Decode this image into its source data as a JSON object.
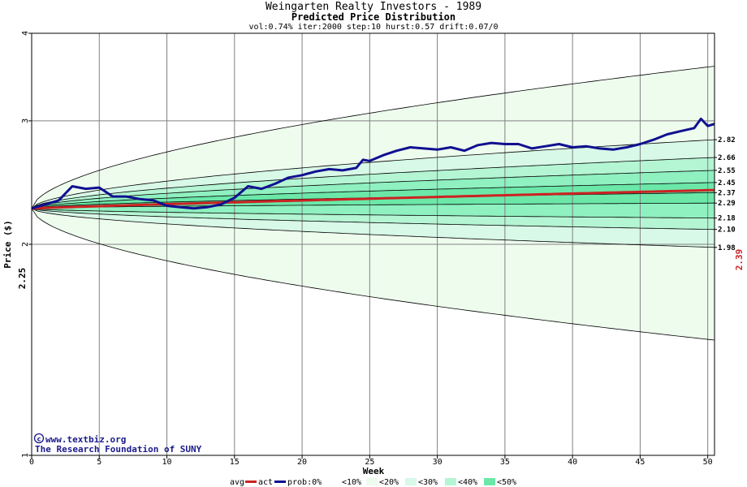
{
  "chart_data": {
    "type": "area",
    "title": "Weingarten Realty Investors - 1989",
    "subtitle": "Predicted Price Distribution",
    "params": "vol:0.74% iter:2000 step:10 hurst:0.57 drift:0.07/0",
    "xlabel": "Week",
    "ylabel": "Price ($)",
    "xlim": [
      0,
      50.5
    ],
    "ylim": [
      1,
      4
    ],
    "log_scale_y": true,
    "x_ticks": [
      0,
      5,
      10,
      15,
      20,
      25,
      30,
      35,
      40,
      45,
      50
    ],
    "y_ticks": [
      1,
      2,
      3,
      4
    ],
    "start_price": 2.25,
    "start_price_label": "2.25",
    "final_avg_label": "2.39",
    "percentiles": [
      {
        "q": 0.0,
        "end": 1.46
      },
      {
        "q": 0.1,
        "end": 1.98
      },
      {
        "q": 0.2,
        "end": 2.1
      },
      {
        "q": 0.3,
        "end": 2.18
      },
      {
        "q": 0.4,
        "end": 2.29
      },
      {
        "q": 0.5,
        "end": 2.37
      },
      {
        "q": 0.6,
        "end": 2.45
      },
      {
        "q": 0.7,
        "end": 2.55
      },
      {
        "q": 0.8,
        "end": 2.66
      },
      {
        "q": 0.9,
        "end": 2.82
      },
      {
        "q": 1.0,
        "end": 3.59
      }
    ],
    "right_labels": [
      "2.82",
      "2.66",
      "2.55",
      "2.45",
      "2.37",
      "2.29",
      "2.18",
      "2.10",
      "1.98"
    ],
    "avg_end": 2.39,
    "actual_series": {
      "x": [
        0,
        1,
        2,
        3,
        4,
        5,
        6,
        7,
        8,
        9,
        10,
        11,
        12,
        13,
        14,
        15,
        16,
        17,
        18,
        19,
        20,
        21,
        22,
        23,
        24,
        24.5,
        25,
        26,
        27,
        28,
        29,
        30,
        31,
        32,
        33,
        34,
        35,
        36,
        37,
        38,
        39,
        40,
        41,
        42,
        43,
        44,
        45,
        46,
        47,
        48,
        49,
        49.5,
        50,
        50.5
      ],
      "y": [
        2.25,
        2.28,
        2.31,
        2.42,
        2.4,
        2.41,
        2.34,
        2.34,
        2.32,
        2.31,
        2.27,
        2.26,
        2.25,
        2.26,
        2.28,
        2.33,
        2.42,
        2.4,
        2.44,
        2.49,
        2.51,
        2.54,
        2.56,
        2.55,
        2.57,
        2.64,
        2.63,
        2.68,
        2.72,
        2.75,
        2.74,
        2.73,
        2.75,
        2.72,
        2.77,
        2.79,
        2.78,
        2.78,
        2.74,
        2.76,
        2.78,
        2.75,
        2.76,
        2.74,
        2.73,
        2.75,
        2.78,
        2.82,
        2.87,
        2.9,
        2.93,
        3.02,
        2.95,
        2.97
      ]
    },
    "colors": {
      "band_0_10": "#eefcee",
      "band_10_20": "#d8f8e8",
      "band_20_30": "#b4f5d3",
      "band_30_40": "#8ff0c0",
      "band_40_50": "#6be8a8",
      "avg_line": "#cc2222",
      "act_line": "#101090",
      "grid": "#808080"
    },
    "legend": {
      "avg": "avg",
      "act": "act",
      "prob": "prob:0%",
      "b10": "<10%",
      "b20": "<20%",
      "b30": "<30%",
      "b40": "<40%",
      "b50": "<50%"
    }
  },
  "credit": {
    "site": "www.textbiz.org",
    "org": "The Research Foundation of SUNY"
  }
}
